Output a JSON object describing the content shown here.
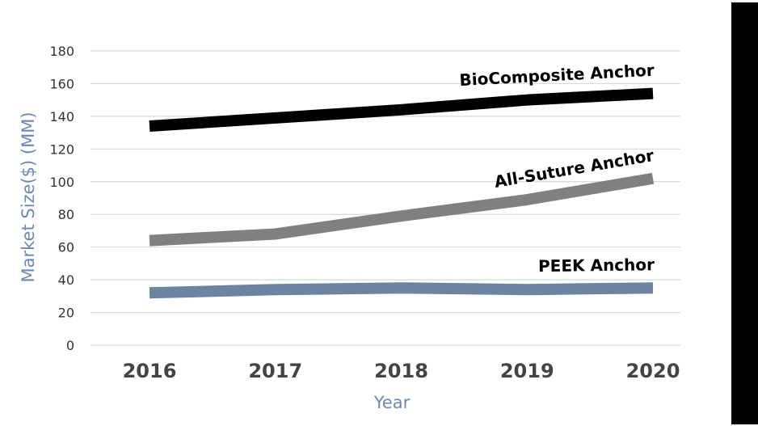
{
  "chart_data": {
    "type": "line",
    "categories": [
      "2016",
      "2017",
      "2018",
      "2019",
      "2020"
    ],
    "series": [
      {
        "name": "BioComposite Anchor",
        "values": [
          134,
          139,
          144,
          150,
          154
        ],
        "color": "#000000"
      },
      {
        "name": "All-Suture Anchor",
        "values": [
          64,
          68,
          79,
          89,
          102
        ],
        "color": "#808080"
      },
      {
        "name": "PEEK Anchor",
        "values": [
          32,
          34,
          35,
          34,
          35
        ],
        "color": "#6a84a2"
      }
    ],
    "ylim": [
      0,
      180
    ],
    "yticks": [
      "0",
      "20",
      "40",
      "60",
      "80",
      "100",
      "120",
      "140",
      "160",
      "180"
    ],
    "xlabel": "Year",
    "ylabel": "Market Size($) (MM)",
    "grid": true,
    "legend": "inline labels at line ends"
  }
}
